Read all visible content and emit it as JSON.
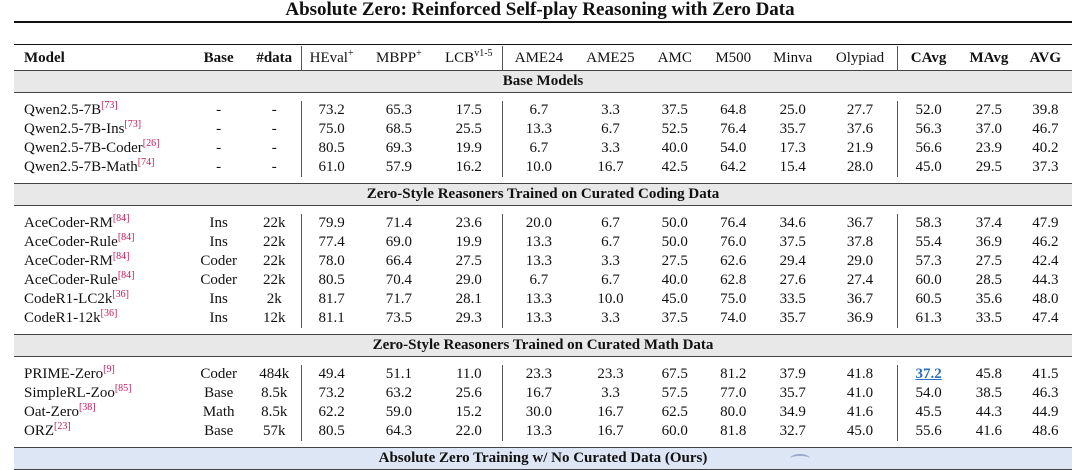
{
  "title": "Absolute Zero: Reinforced Self-play Reasoning with Zero Data",
  "columns": [
    "Model",
    "Base",
    "#data",
    "HEval",
    "MBPP",
    "LCB",
    "AME24",
    "AME25",
    "AMC",
    "M500",
    "Minva",
    "Olypiad",
    "CAvg",
    "MAvg",
    "AVG"
  ],
  "column_sups": {
    "HEval": "+",
    "MBPP": "+",
    "LCB": "v1-5"
  },
  "sections": [
    {
      "title": "Base Models",
      "rows": [
        {
          "model": "Qwen2.5-7B",
          "cite": "[73]",
          "cells": [
            "-",
            "-",
            "73.2",
            "65.3",
            "17.5",
            "6.7",
            "3.3",
            "37.5",
            "64.8",
            "25.0",
            "27.7",
            "52.0",
            "27.5",
            "39.8"
          ]
        },
        {
          "model": "Qwen2.5-7B-Ins",
          "cite": "[73]",
          "cells": [
            "-",
            "-",
            "75.0",
            "68.5",
            "25.5",
            "13.3",
            "6.7",
            "52.5",
            "76.4",
            "35.7",
            "37.6",
            "56.3",
            "37.0",
            "46.7"
          ]
        },
        {
          "model": "Qwen2.5-7B-Coder",
          "cite": "[26]",
          "cells": [
            "-",
            "-",
            "80.5",
            "69.3",
            "19.9",
            "6.7",
            "3.3",
            "40.0",
            "54.0",
            "17.3",
            "21.9",
            "56.6",
            "23.9",
            "40.2"
          ]
        },
        {
          "model": "Qwen2.5-7B-Math",
          "cite": "[74]",
          "cells": [
            "-",
            "-",
            "61.0",
            "57.9",
            "16.2",
            "10.0",
            "16.7",
            "42.5",
            "64.2",
            "15.4",
            "28.0",
            "45.0",
            "29.5",
            "37.3"
          ]
        }
      ]
    },
    {
      "title": "Zero-Style Reasoners Trained on Curated Coding Data",
      "rows": [
        {
          "model": "AceCoder-RM",
          "cite": "[84]",
          "cells": [
            "Ins",
            "22k",
            "79.9",
            "71.4",
            "23.6",
            "20.0",
            "6.7",
            "50.0",
            "76.4",
            "34.6",
            "36.7",
            "58.3",
            "37.4",
            "47.9"
          ]
        },
        {
          "model": "AceCoder-Rule",
          "cite": "[84]",
          "cells": [
            "Ins",
            "22k",
            "77.4",
            "69.0",
            "19.9",
            "13.3",
            "6.7",
            "50.0",
            "76.0",
            "37.5",
            "37.8",
            "55.4",
            "36.9",
            "46.2"
          ]
        },
        {
          "model": "AceCoder-RM",
          "cite": "[84]",
          "cells": [
            "Coder",
            "22k",
            "78.0",
            "66.4",
            "27.5",
            "13.3",
            "3.3",
            "27.5",
            "62.6",
            "29.4",
            "29.0",
            "57.3",
            "27.5",
            "42.4"
          ]
        },
        {
          "model": "AceCoder-Rule",
          "cite": "[84]",
          "cells": [
            "Coder",
            "22k",
            "80.5",
            "70.4",
            "29.0",
            "6.7",
            "6.7",
            "40.0",
            "62.8",
            "27.6",
            "27.4",
            "60.0",
            "28.5",
            "44.3"
          ]
        },
        {
          "model": "CodeR1-LC2k",
          "cite": "[36]",
          "cells": [
            "Ins",
            "2k",
            "81.7",
            "71.7",
            "28.1",
            "13.3",
            "10.0",
            "45.0",
            "75.0",
            "33.5",
            "36.7",
            "60.5",
            "35.6",
            "48.0"
          ]
        },
        {
          "model": "CodeR1-12k",
          "cite": "[36]",
          "cells": [
            "Ins",
            "12k",
            "81.1",
            "73.5",
            "29.3",
            "13.3",
            "3.3",
            "37.5",
            "74.0",
            "35.7",
            "36.9",
            "61.3",
            "33.5",
            "47.4"
          ]
        }
      ]
    },
    {
      "title": "Zero-Style Reasoners Trained on Curated Math Data",
      "rows": [
        {
          "model": "PRIME-Zero",
          "cite": "[9]",
          "cells": [
            "Coder",
            "484k",
            "49.4",
            "51.1",
            "11.0",
            "23.3",
            "23.3",
            "67.5",
            "81.2",
            "37.9",
            "41.8",
            "37.2",
            "45.8",
            "41.5"
          ]
        },
        {
          "model": "SimpleRL-Zoo",
          "cite": "[85]",
          "cells": [
            "Base",
            "8.5k",
            "73.2",
            "63.2",
            "25.6",
            "16.7",
            "3.3",
            "57.5",
            "77.0",
            "35.7",
            "41.0",
            "54.0",
            "38.5",
            "46.3"
          ]
        },
        {
          "model": "Oat-Zero",
          "cite": "[38]",
          "cells": [
            "Math",
            "8.5k",
            "62.2",
            "59.0",
            "15.2",
            "30.0",
            "16.7",
            "62.5",
            "80.0",
            "34.9",
            "41.6",
            "45.5",
            "44.3",
            "44.9"
          ]
        },
        {
          "model": "ORZ",
          "cite": "[23]",
          "cells": [
            "Base",
            "57k",
            "80.5",
            "64.3",
            "22.0",
            "13.3",
            "16.7",
            "60.0",
            "81.8",
            "32.7",
            "45.0",
            "55.6",
            "41.6",
            "48.6"
          ]
        }
      ]
    }
  ],
  "footer_section": "Absolute Zero Training w/ No Curated Data (Ours)",
  "highlight": {
    "section": 2,
    "row": 0,
    "col": 12,
    "color": "#2a6ebb"
  }
}
